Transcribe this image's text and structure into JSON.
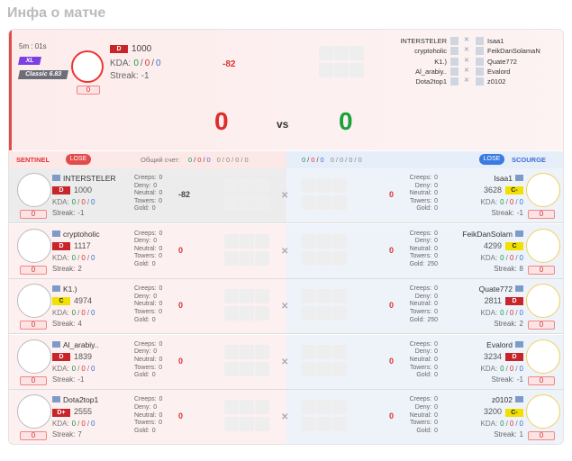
{
  "header": {
    "title": "Инфа о матче"
  },
  "labels": {
    "kda": "KDA:",
    "streak": "Streak:",
    "creeps": "Creeps:",
    "deny": "Deny:",
    "neutral": "Neutral:",
    "towers": "Towers:",
    "gold": "Gold:",
    "sep": "/",
    "vs": "vs",
    "total": "Общий счет:"
  },
  "summary": {
    "time": "5m : 01s",
    "mode": "XL",
    "version": "Classic 6.83",
    "badge": 0,
    "rank": "D",
    "rating": 1000,
    "kda": [
      0,
      0,
      0
    ],
    "streak": -1,
    "delta": -82,
    "score": [
      0,
      0
    ],
    "sentinel_names": [
      "INTERSTELER",
      "cryptoholic",
      "K1.)",
      "Al_arabiy..",
      "Dota2top1"
    ],
    "scourge_names": [
      "Isaa1",
      "FeikDanSolamaN",
      "Quate772",
      "Evalord",
      "z0102"
    ]
  },
  "teams": [
    {
      "name": "SENTINEL",
      "result": "LOSE",
      "totals": [
        [
          0,
          0,
          0
        ],
        [
          0,
          0,
          0,
          0
        ]
      ]
    },
    {
      "name": "SCOURGE",
      "result": "LOSE",
      "totals": [
        [
          0,
          0,
          0
        ],
        [
          0,
          0,
          0,
          0
        ]
      ]
    }
  ],
  "players": {
    "sentinel": [
      {
        "name": "INTERSTELER",
        "rank": "D",
        "rating": 1000,
        "kda": [
          0,
          0,
          0
        ],
        "streak": -1,
        "badge": 0,
        "delta": -82,
        "creeps": 0,
        "deny": 0,
        "neutral": 0,
        "towers": 0,
        "gold": 0
      },
      {
        "name": "cryptoholic",
        "rank": "D",
        "rating": 1117,
        "kda": [
          0,
          0,
          0
        ],
        "streak": 2,
        "badge": 0,
        "delta": 0,
        "creeps": 0,
        "deny": 0,
        "neutral": 0,
        "towers": 0,
        "gold": 0
      },
      {
        "name": "K1.)",
        "rank": "C",
        "rating": 4974,
        "kda": [
          0,
          0,
          0
        ],
        "streak": 4,
        "badge": 0,
        "delta": 0,
        "creeps": 0,
        "deny": 0,
        "neutral": 0,
        "towers": 0,
        "gold": 0
      },
      {
        "name": "Al_arabiy..",
        "rank": "D",
        "rating": 1839,
        "kda": [
          0,
          0,
          0
        ],
        "streak": -1,
        "badge": 0,
        "delta": 0,
        "creeps": 0,
        "deny": 0,
        "neutral": 0,
        "towers": 0,
        "gold": 0
      },
      {
        "name": "Dota2top1",
        "rank": "D+",
        "rating": 2555,
        "kda": [
          0,
          0,
          0
        ],
        "streak": 7,
        "badge": 0,
        "delta": 0,
        "creeps": 0,
        "deny": 0,
        "neutral": 0,
        "towers": 0,
        "gold": 0
      }
    ],
    "scourge": [
      {
        "name": "Isaa1",
        "rank": "C-",
        "rating": 3628,
        "kda": [
          0,
          0,
          0
        ],
        "streak": -1,
        "badge": 0,
        "delta": 0,
        "creeps": 0,
        "deny": 0,
        "neutral": 0,
        "towers": 0,
        "gold": 0
      },
      {
        "name": "FeikDanSolam",
        "rank": "C",
        "rating": 4299,
        "kda": [
          0,
          0,
          0
        ],
        "streak": 8,
        "badge": 0,
        "delta": 0,
        "creeps": 0,
        "deny": 0,
        "neutral": 0,
        "towers": 0,
        "gold": 250
      },
      {
        "name": "Quate772",
        "rank": "D",
        "rating": 2811,
        "kda": [
          0,
          0,
          0
        ],
        "streak": 2,
        "badge": 0,
        "delta": 0,
        "creeps": 0,
        "deny": 0,
        "neutral": 0,
        "towers": 0,
        "gold": 250
      },
      {
        "name": "Evalord",
        "rank": "D",
        "rating": 3234,
        "kda": [
          0,
          0,
          0
        ],
        "streak": -1,
        "badge": 0,
        "delta": 0,
        "creeps": 0,
        "deny": 0,
        "neutral": 0,
        "towers": 0,
        "gold": 0
      },
      {
        "name": "z0102",
        "rank": "C-",
        "rating": 3200,
        "kda": [
          0,
          0,
          0
        ],
        "streak": 1,
        "badge": 0,
        "delta": 0,
        "creeps": 0,
        "deny": 0,
        "neutral": 0,
        "towers": 0,
        "gold": 0
      }
    ]
  }
}
